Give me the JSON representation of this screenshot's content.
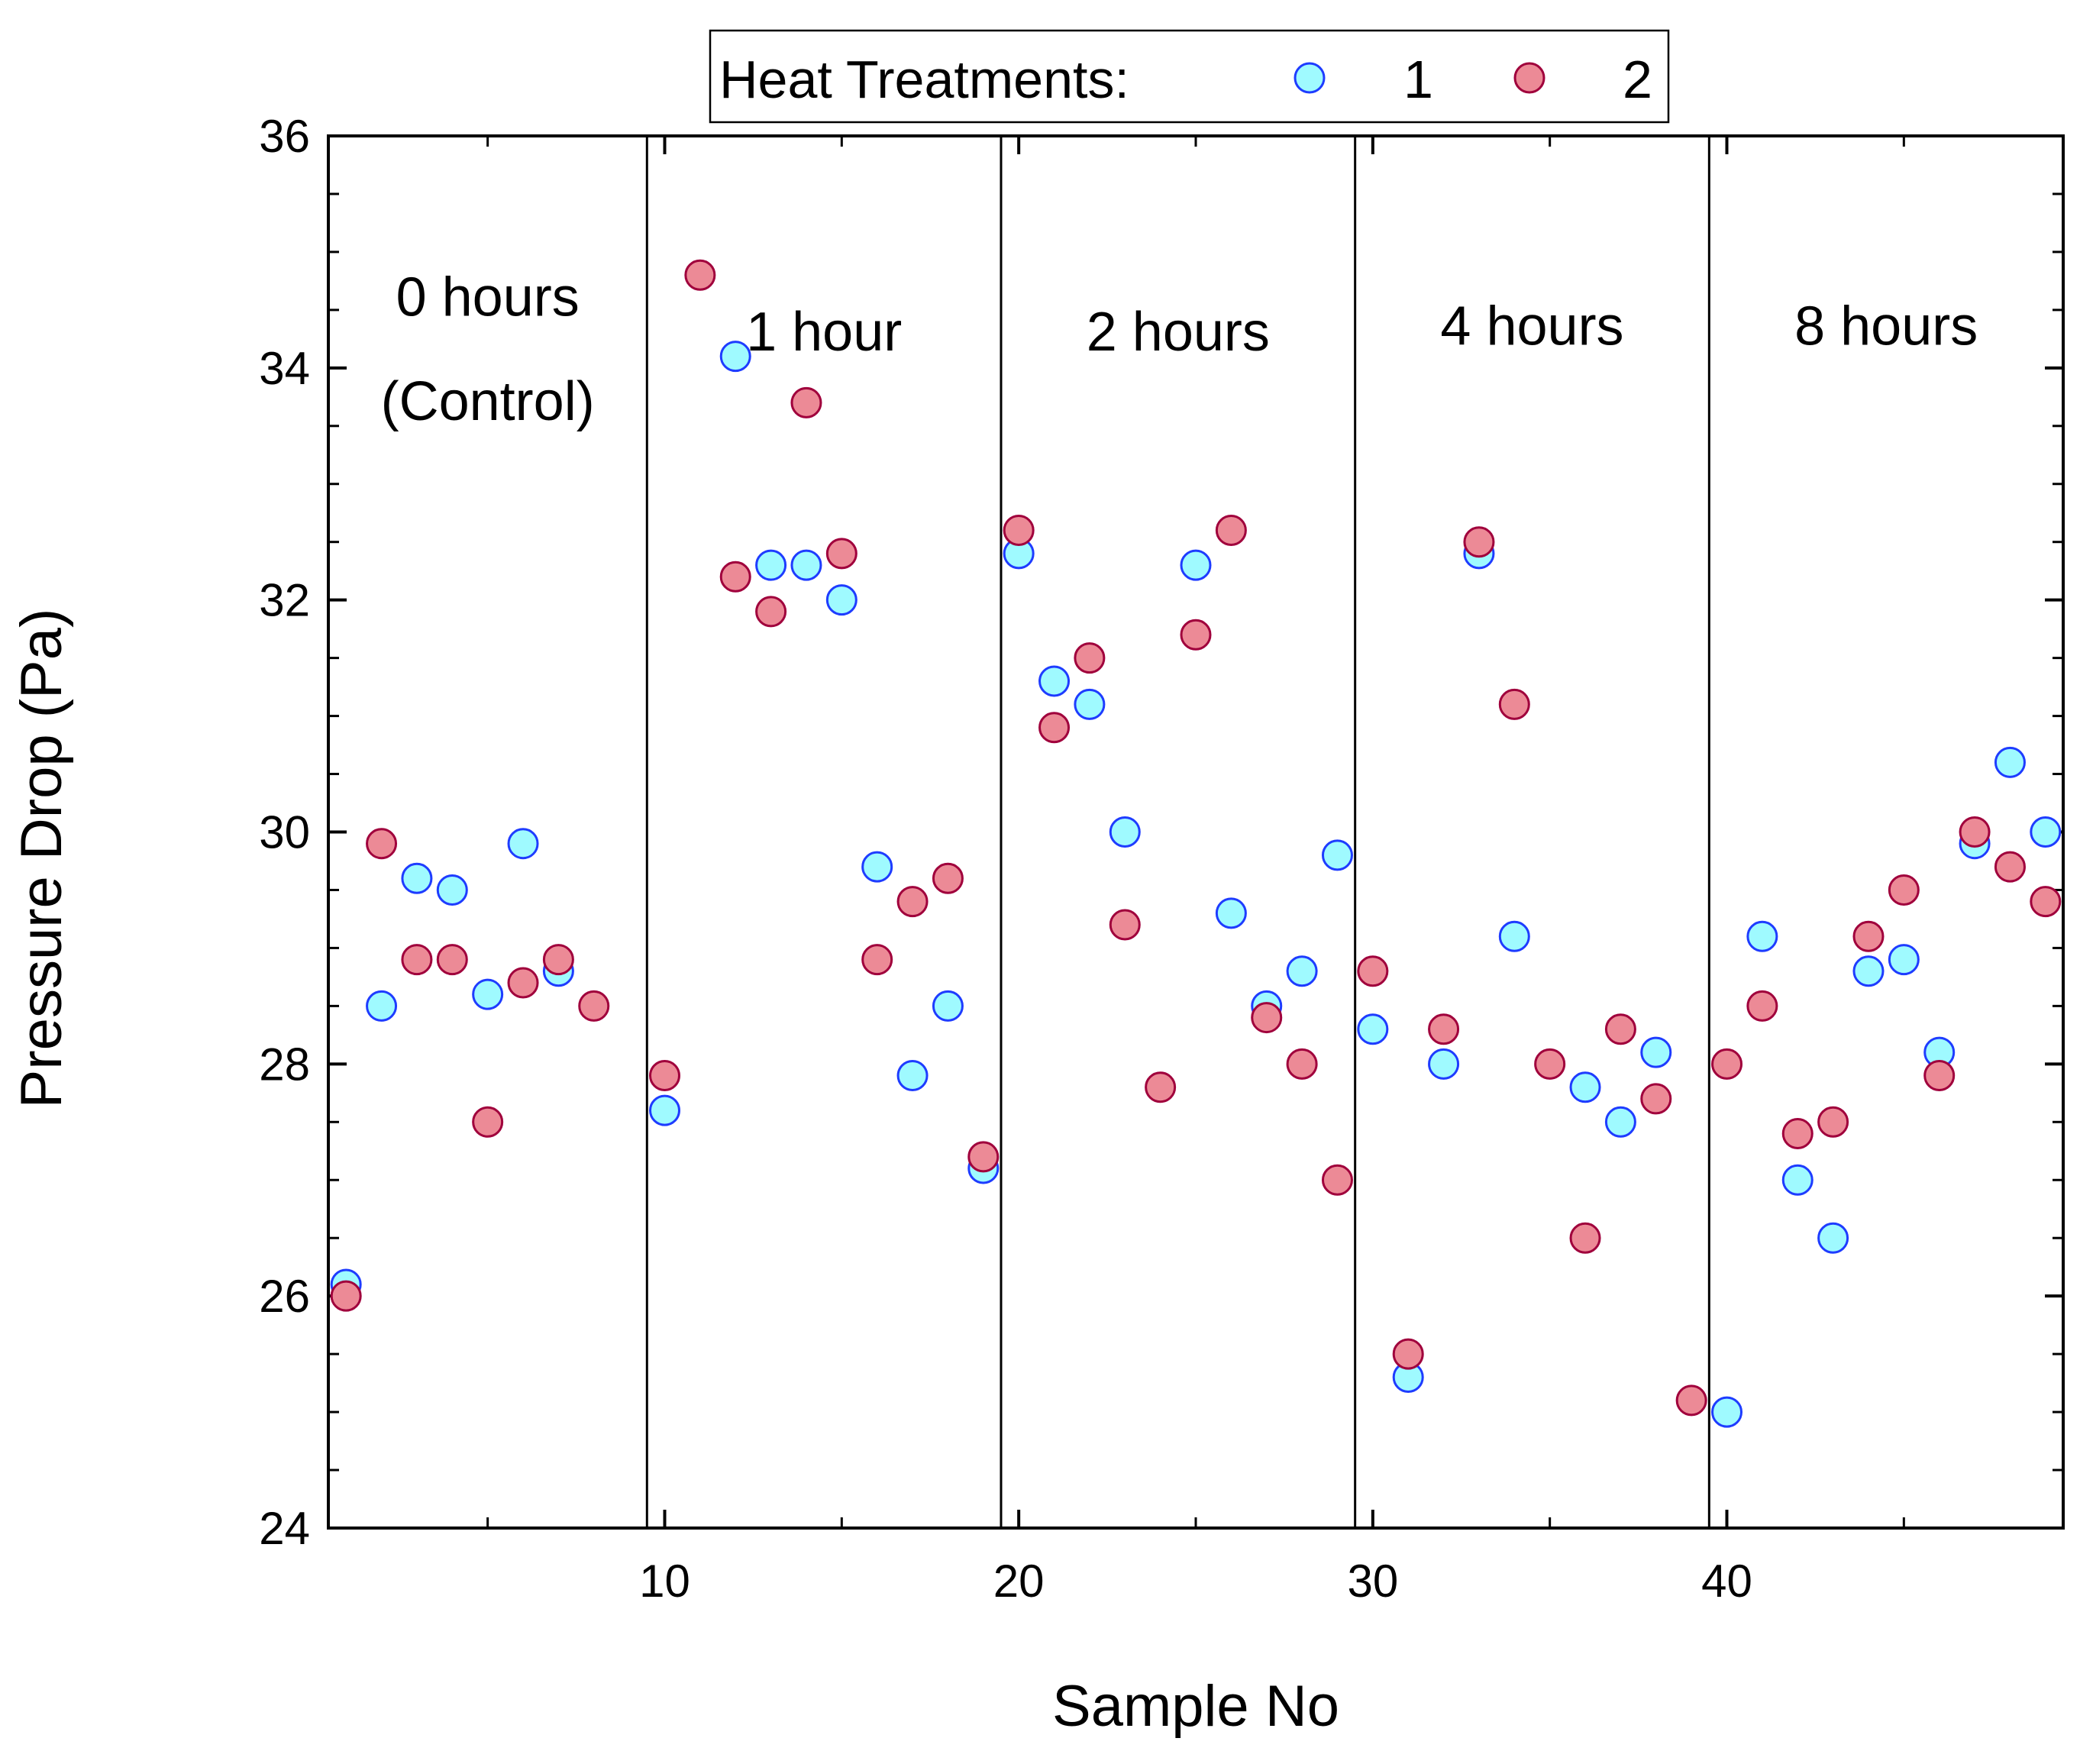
{
  "chart_data": {
    "type": "scatter",
    "xlabel": "Sample No",
    "ylabel": "Pressure Drop (Pa)",
    "xlim": [
      0.5,
      49.5
    ],
    "ylim": [
      24,
      36
    ],
    "xticks": [
      10,
      20,
      30,
      40
    ],
    "yticks": [
      24,
      26,
      28,
      30,
      32,
      34,
      36
    ],
    "legend": {
      "title": "Heat Treatments:",
      "placement": "top-center",
      "entries": [
        "1",
        "2"
      ]
    },
    "dividers": [
      9.5,
      19.5,
      29.5,
      39.5
    ],
    "regions": [
      {
        "lines": [
          "0 hours",
          "(Control)"
        ],
        "x": 5,
        "y": [
          34.45,
          33.55
        ]
      },
      {
        "lines": [
          "1 hour"
        ],
        "x": 14.5,
        "y": [
          34.15
        ]
      },
      {
        "lines": [
          "2 hours"
        ],
        "x": 24.5,
        "y": [
          34.15
        ]
      },
      {
        "lines": [
          "4 hours"
        ],
        "x": 34.5,
        "y": [
          34.2
        ]
      },
      {
        "lines": [
          "8 hours"
        ],
        "x": 44.5,
        "y": [
          34.2
        ]
      }
    ],
    "series": [
      {
        "name": "1",
        "fill": "#9ffaff",
        "stroke": "#1e3cff",
        "x": [
          1,
          2,
          3,
          4,
          5,
          6,
          7,
          10,
          12,
          13,
          14,
          15,
          16,
          17,
          18,
          19,
          20,
          21,
          22,
          23,
          25,
          26,
          27,
          28,
          29,
          30,
          31,
          32,
          33,
          34,
          36,
          37,
          38,
          40,
          41,
          42,
          43,
          44,
          45,
          46,
          47,
          48,
          49
        ],
        "y": [
          26.1,
          28.5,
          29.6,
          29.5,
          28.6,
          29.9,
          28.8,
          27.6,
          34.1,
          32.3,
          32.3,
          32.0,
          29.7,
          27.9,
          28.5,
          27.1,
          32.4,
          31.3,
          31.1,
          30.0,
          32.3,
          29.3,
          28.5,
          28.8,
          29.8,
          28.3,
          25.3,
          28.0,
          32.4,
          29.1,
          27.8,
          27.5,
          28.1,
          25.0,
          29.1,
          27.0,
          26.5,
          28.8,
          28.9,
          28.1,
          29.9,
          30.6,
          30.0
        ]
      },
      {
        "name": "2",
        "fill": "#ec8a96",
        "stroke": "#a0003c",
        "x": [
          1,
          2,
          3,
          4,
          5,
          6,
          7,
          8,
          10,
          11,
          12,
          13,
          14,
          15,
          16,
          17,
          18,
          19,
          20,
          21,
          22,
          23,
          24,
          25,
          26,
          27,
          28,
          29,
          30,
          31,
          32,
          33,
          34,
          35,
          36,
          37,
          38,
          39,
          40,
          41,
          42,
          43,
          44,
          45,
          46,
          47,
          48,
          49
        ],
        "y": [
          26.0,
          29.9,
          28.9,
          28.9,
          27.5,
          28.7,
          28.9,
          28.5,
          27.9,
          34.8,
          32.2,
          31.9,
          33.7,
          32.4,
          28.9,
          29.4,
          29.6,
          27.2,
          32.6,
          30.9,
          31.5,
          29.2,
          27.8,
          31.7,
          32.6,
          28.4,
          28.0,
          27.0,
          28.8,
          25.5,
          28.3,
          32.5,
          31.1,
          28.0,
          26.5,
          28.3,
          27.7,
          25.1,
          28.0,
          28.5,
          27.4,
          27.5,
          29.1,
          29.5,
          27.9,
          30.0,
          29.7,
          29.4
        ]
      }
    ]
  }
}
